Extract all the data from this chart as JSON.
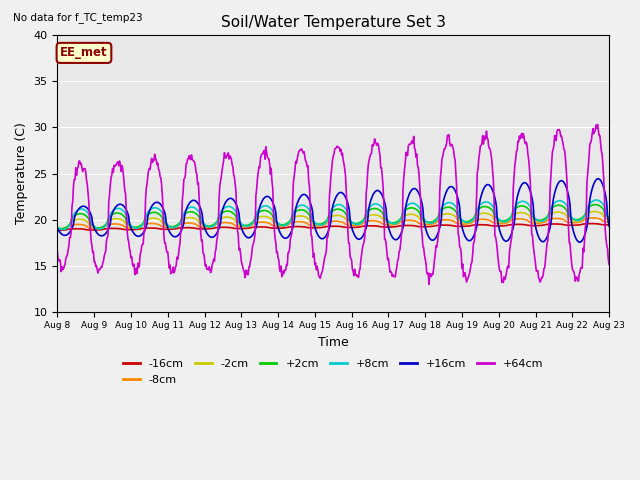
{
  "title": "Soil/Water Temperature Set 3",
  "top_left_text": "No data for f_TC_temp23",
  "xlabel": "Time",
  "ylabel": "Temperature (C)",
  "ylim": [
    10,
    40
  ],
  "bg_color": "#e8e8e8",
  "fig_color": "#f0f0f0",
  "x_tick_labels": [
    "Aug 8",
    "Aug 9",
    "Aug 10",
    "Aug 11",
    "Aug 12",
    "Aug 13",
    "Aug 14",
    "Aug 15",
    "Aug 16",
    "Aug 17",
    "Aug 18",
    "Aug 19",
    "Aug 20",
    "Aug 21",
    "Aug 22",
    "Aug 23"
  ],
  "yticks": [
    10,
    15,
    20,
    25,
    30,
    35,
    40
  ],
  "legend_box_label": "EE_met",
  "legend_box_bg": "#ffffcc",
  "legend_box_edge": "#8b0000",
  "series": [
    {
      "label": "-16cm",
      "color": "#cc0000",
      "lw": 1.2
    },
    {
      "label": "-8cm",
      "color": "#ff8800",
      "lw": 1.2
    },
    {
      "label": "-2cm",
      "color": "#cccc00",
      "lw": 1.2
    },
    {
      "label": "+2cm",
      "color": "#00cc00",
      "lw": 1.2
    },
    {
      "label": "+8cm",
      "color": "#00cccc",
      "lw": 1.2
    },
    {
      "label": "+16cm",
      "color": "#0000cc",
      "lw": 1.2
    },
    {
      "label": "+64cm",
      "color": "#cc00cc",
      "lw": 1.2
    }
  ]
}
